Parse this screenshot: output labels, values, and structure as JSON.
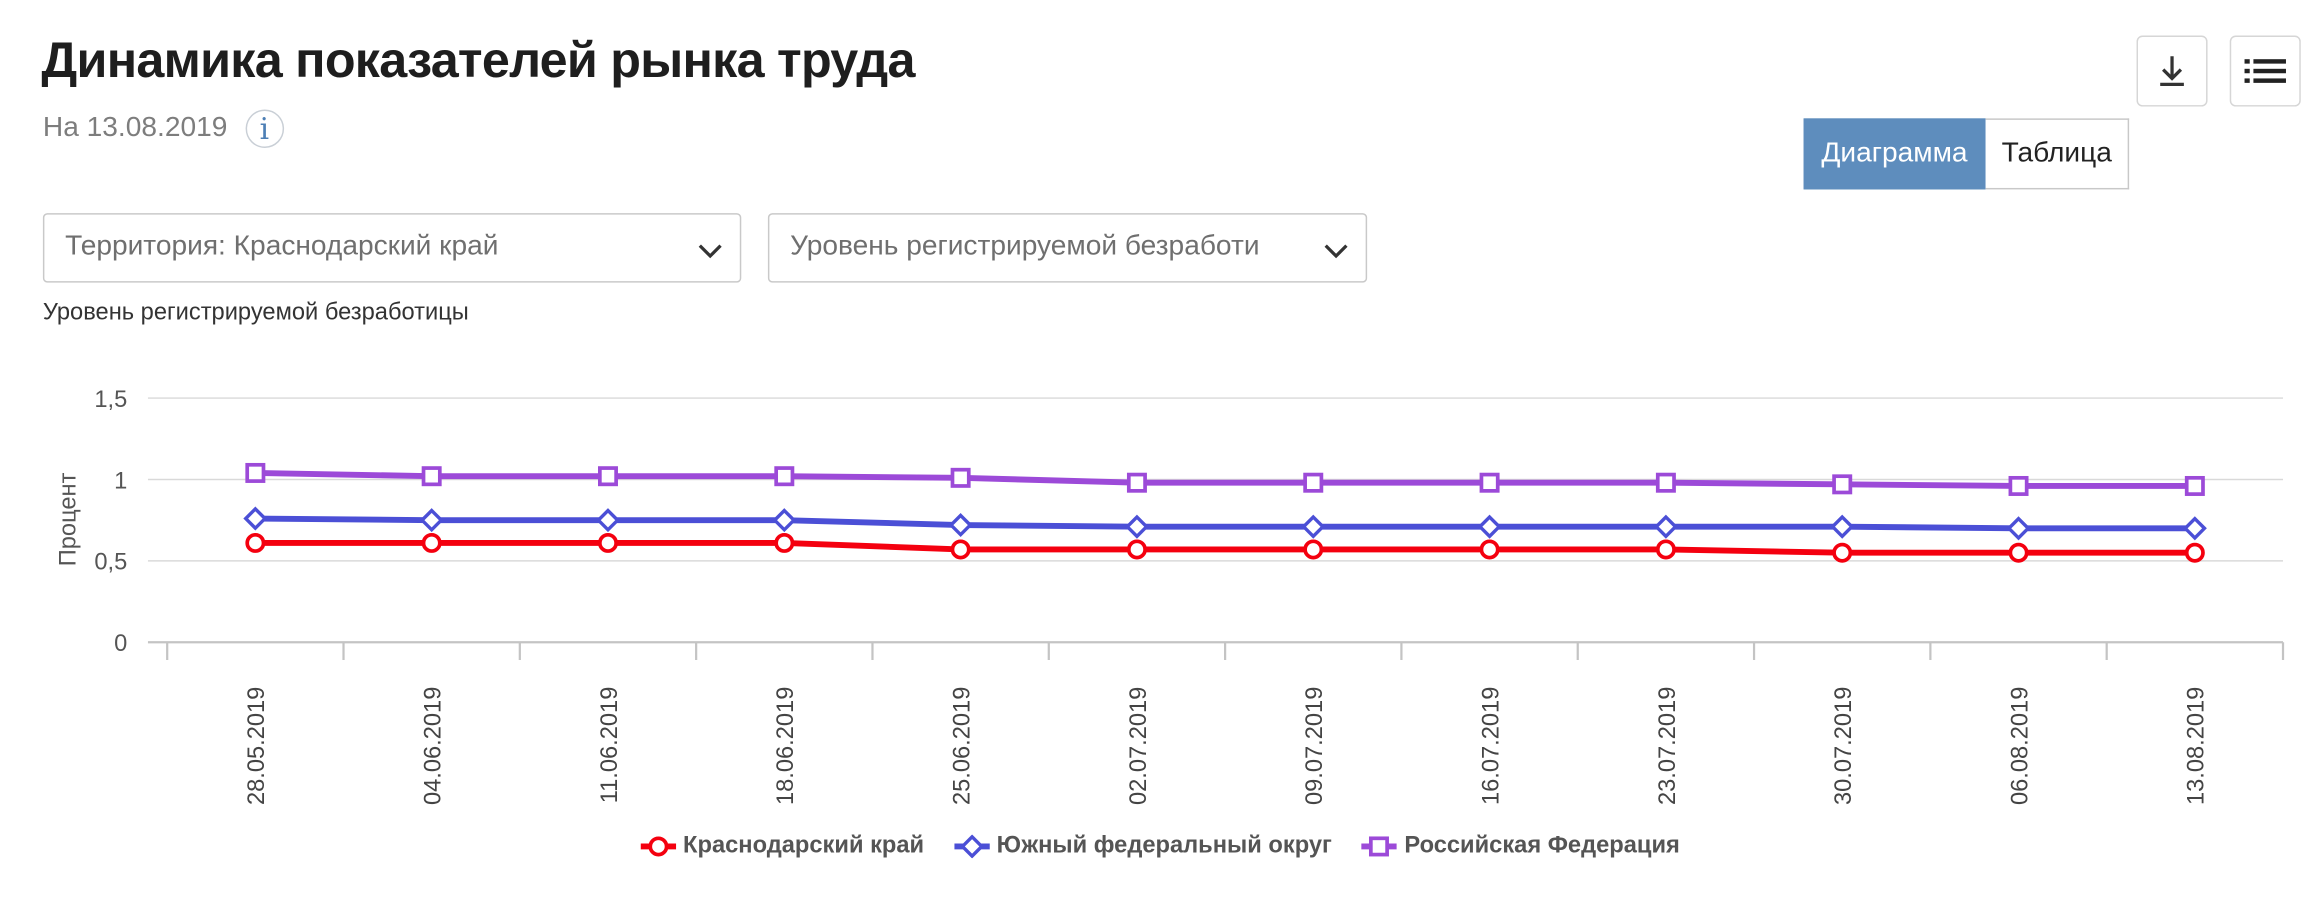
{
  "header": {
    "title": "Динамика показателей рынка труда",
    "date": "На 13.08.2019",
    "info_glyph": "i"
  },
  "toolbar": {
    "download_icon": "download-icon",
    "menu_icon": "menu-icon"
  },
  "view_toggle": {
    "chart_label": "Диаграмма",
    "table_label": "Таблица",
    "active": "chart"
  },
  "filters": {
    "territory": "Территория: Краснодарский край",
    "indicator": "Уровень регистрируемой безработи"
  },
  "colors": {
    "accent": "#5e8dbd",
    "krasnodar": "#f4000f",
    "south": "#4b4fd6",
    "russia": "#9c4ad8",
    "grid": "#d9d9d9"
  },
  "chart_data": {
    "type": "line",
    "title": "Уровень регистрируемой безработицы",
    "ylabel": "Процент",
    "xlabel": "",
    "ylim": [
      0,
      1.5
    ],
    "yticks": [
      "0",
      "0,5",
      "1",
      "1,5"
    ],
    "categories": [
      "28.05.2019",
      "04.06.2019",
      "11.06.2019",
      "18.06.2019",
      "25.06.2019",
      "02.07.2019",
      "09.07.2019",
      "16.07.2019",
      "23.07.2019",
      "30.07.2019",
      "06.08.2019",
      "13.08.2019"
    ],
    "grid": true,
    "legend_position": "bottom-center",
    "series": [
      {
        "name": "Краснодарский край",
        "marker": "circle",
        "color": "#f4000f",
        "values": [
          0.61,
          0.61,
          0.61,
          0.61,
          0.57,
          0.57,
          0.57,
          0.57,
          0.57,
          0.55,
          0.55,
          0.55
        ]
      },
      {
        "name": "Южный федеральный округ",
        "marker": "diamond",
        "color": "#4b4fd6",
        "values": [
          0.76,
          0.75,
          0.75,
          0.75,
          0.72,
          0.71,
          0.71,
          0.71,
          0.71,
          0.71,
          0.7,
          0.7
        ]
      },
      {
        "name": "Российская Федерация",
        "marker": "square",
        "color": "#9c4ad8",
        "values": [
          1.04,
          1.02,
          1.02,
          1.02,
          1.01,
          0.98,
          0.98,
          0.98,
          0.98,
          0.97,
          0.96,
          0.96
        ]
      }
    ]
  }
}
